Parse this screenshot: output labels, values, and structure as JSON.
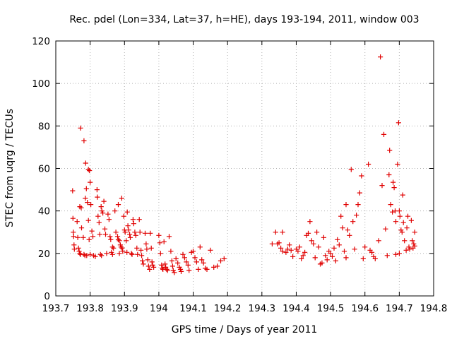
{
  "chart_data": {
    "type": "scatter",
    "title": "Rec. pdel (Lon=334, Lat=37, h=HE), days 193-194, 2011, window 003",
    "xlabel": "GPS time / Days of year 2011",
    "ylabel": "STEC from uqrg / TECUs",
    "xlim": [
      193.7,
      194.8
    ],
    "ylim": [
      0,
      120
    ],
    "x_ticks": [
      "193.7",
      "193.8",
      "193.9",
      "194",
      "194.1",
      "194.2",
      "194.3",
      "194.4",
      "194.5",
      "194.6",
      "194.7",
      "194.8"
    ],
    "y_ticks": [
      "0",
      "20",
      "40",
      "60",
      "80",
      "100",
      "120"
    ],
    "grid": true,
    "marker": "+",
    "color": "#e00000",
    "series": [
      {
        "points": [
          [
            193.749,
            49.5
          ],
          [
            193.75,
            36.5
          ],
          [
            193.751,
            30
          ],
          [
            193.752,
            28
          ],
          [
            193.753,
            24
          ],
          [
            193.754,
            22
          ],
          [
            193.762,
            35
          ],
          [
            193.764,
            27.5
          ],
          [
            193.766,
            22.5
          ],
          [
            193.768,
            21
          ],
          [
            193.77,
            20
          ],
          [
            193.772,
            19.5
          ],
          [
            193.77,
            42
          ],
          [
            193.774,
            41.5
          ],
          [
            193.775,
            32
          ],
          [
            193.78,
            27.5
          ],
          [
            193.782,
            19.5
          ],
          [
            193.785,
            19
          ],
          [
            193.79,
            19
          ],
          [
            193.786,
            46
          ],
          [
            193.789,
            50.5
          ],
          [
            193.792,
            44
          ],
          [
            193.795,
            35.5
          ],
          [
            193.797,
            26.5
          ],
          [
            193.8,
            19.5
          ],
          [
            193.772,
            79
          ],
          [
            193.782,
            73
          ],
          [
            193.787,
            62.5
          ],
          [
            193.795,
            59.5
          ],
          [
            193.798,
            59
          ],
          [
            193.8,
            53.5
          ],
          [
            193.802,
            43
          ],
          [
            193.805,
            30.5
          ],
          [
            193.808,
            28
          ],
          [
            193.81,
            19
          ],
          [
            193.815,
            18.5
          ],
          [
            193.82,
            50
          ],
          [
            193.821,
            46.5
          ],
          [
            193.823,
            37.5
          ],
          [
            193.826,
            34.5
          ],
          [
            193.828,
            29
          ],
          [
            193.83,
            19.5
          ],
          [
            193.833,
            19
          ],
          [
            193.832,
            42
          ],
          [
            193.834,
            40
          ],
          [
            193.837,
            39
          ],
          [
            193.84,
            44.5
          ],
          [
            193.843,
            31.5
          ],
          [
            193.845,
            29
          ],
          [
            193.848,
            20
          ],
          [
            193.852,
            38.5
          ],
          [
            193.855,
            36
          ],
          [
            193.858,
            28
          ],
          [
            193.86,
            26.5
          ],
          [
            193.862,
            20.5
          ],
          [
            193.865,
            19.5
          ],
          [
            193.865,
            23
          ],
          [
            193.868,
            22.5
          ],
          [
            193.872,
            40
          ],
          [
            193.875,
            30
          ],
          [
            193.88,
            28
          ],
          [
            193.882,
            26.5
          ],
          [
            193.885,
            20
          ],
          [
            193.882,
            43
          ],
          [
            193.885,
            26
          ],
          [
            193.888,
            24
          ],
          [
            193.89,
            23
          ],
          [
            193.893,
            22.5
          ],
          [
            193.895,
            21
          ],
          [
            193.892,
            46
          ],
          [
            193.898,
            37.5
          ],
          [
            193.9,
            31
          ],
          [
            193.902,
            30
          ],
          [
            193.905,
            26
          ],
          [
            193.907,
            20.5
          ],
          [
            193.908,
            39.5
          ],
          [
            193.91,
            33
          ],
          [
            193.912,
            31
          ],
          [
            193.915,
            29
          ],
          [
            193.917,
            27.5
          ],
          [
            193.92,
            20
          ],
          [
            193.922,
            19.5
          ],
          [
            193.925,
            36
          ],
          [
            193.927,
            34
          ],
          [
            193.93,
            30
          ],
          [
            193.933,
            28.5
          ],
          [
            193.936,
            22.5
          ],
          [
            193.938,
            19.5
          ],
          [
            193.943,
            36
          ],
          [
            193.945,
            30
          ],
          [
            193.948,
            21.5
          ],
          [
            193.95,
            19
          ],
          [
            193.952,
            16.5
          ],
          [
            193.955,
            15
          ],
          [
            193.96,
            29.5
          ],
          [
            193.963,
            24.5
          ],
          [
            193.965,
            22
          ],
          [
            193.968,
            17
          ],
          [
            193.97,
            14
          ],
          [
            193.973,
            12.5
          ],
          [
            193.975,
            29.5
          ],
          [
            193.978,
            22.5
          ],
          [
            193.98,
            16
          ],
          [
            193.982,
            14.5
          ],
          [
            193.985,
            13.5
          ],
          [
            194.0,
            28.5
          ],
          [
            194.003,
            25
          ],
          [
            194.005,
            20
          ],
          [
            194.008,
            14.5
          ],
          [
            194.01,
            13
          ],
          [
            194.012,
            12.5
          ],
          [
            194.015,
            25.5
          ],
          [
            194.018,
            15
          ],
          [
            194.02,
            13.5
          ],
          [
            194.023,
            12.5
          ],
          [
            194.025,
            12
          ],
          [
            194.03,
            28
          ],
          [
            194.035,
            21
          ],
          [
            194.038,
            16.5
          ],
          [
            194.04,
            14
          ],
          [
            194.042,
            12
          ],
          [
            194.045,
            11
          ],
          [
            194.05,
            17.5
          ],
          [
            194.055,
            15.5
          ],
          [
            194.06,
            13.5
          ],
          [
            194.063,
            12.5
          ],
          [
            194.065,
            11.5
          ],
          [
            194.07,
            19.5
          ],
          [
            194.075,
            18
          ],
          [
            194.08,
            16
          ],
          [
            194.085,
            14.5
          ],
          [
            194.088,
            12
          ],
          [
            194.095,
            20.5
          ],
          [
            194.1,
            21
          ],
          [
            194.105,
            18
          ],
          [
            194.11,
            16
          ],
          [
            194.115,
            12.5
          ],
          [
            194.12,
            23
          ],
          [
            194.125,
            17
          ],
          [
            194.13,
            15.5
          ],
          [
            194.135,
            13
          ],
          [
            194.14,
            12.5
          ],
          [
            194.15,
            21.5
          ],
          [
            194.16,
            13.5
          ],
          [
            194.17,
            14
          ],
          [
            194.18,
            16.5
          ],
          [
            194.19,
            17.5
          ],
          [
            194.33,
            24.5
          ],
          [
            194.34,
            30
          ],
          [
            194.345,
            24.5
          ],
          [
            194.35,
            25
          ],
          [
            194.355,
            22.5
          ],
          [
            194.36,
            21
          ],
          [
            194.36,
            30
          ],
          [
            194.37,
            20.5
          ],
          [
            194.375,
            22
          ],
          [
            194.38,
            24
          ],
          [
            194.385,
            21.5
          ],
          [
            194.39,
            18.5
          ],
          [
            194.4,
            22
          ],
          [
            194.405,
            21
          ],
          [
            194.41,
            23
          ],
          [
            194.415,
            17.5
          ],
          [
            194.42,
            19
          ],
          [
            194.425,
            20.5
          ],
          [
            194.43,
            28.5
          ],
          [
            194.435,
            29.5
          ],
          [
            194.44,
            35
          ],
          [
            194.445,
            26
          ],
          [
            194.45,
            24.5
          ],
          [
            194.455,
            18
          ],
          [
            194.46,
            30
          ],
          [
            194.465,
            23
          ],
          [
            194.47,
            15
          ],
          [
            194.475,
            15.5
          ],
          [
            194.48,
            27.5
          ],
          [
            194.485,
            19
          ],
          [
            194.49,
            17
          ],
          [
            194.495,
            21
          ],
          [
            194.5,
            20
          ],
          [
            194.505,
            18.5
          ],
          [
            194.51,
            22.5
          ],
          [
            194.515,
            16.5
          ],
          [
            194.52,
            26.5
          ],
          [
            194.525,
            24
          ],
          [
            194.53,
            37.5
          ],
          [
            194.535,
            32
          ],
          [
            194.54,
            21
          ],
          [
            194.545,
            18
          ],
          [
            194.545,
            43
          ],
          [
            194.55,
            31
          ],
          [
            194.555,
            28.5
          ],
          [
            194.56,
            59.5
          ],
          [
            194.565,
            35
          ],
          [
            194.57,
            22
          ],
          [
            194.575,
            38
          ],
          [
            194.58,
            43
          ],
          [
            194.585,
            48.5
          ],
          [
            194.59,
            56.5
          ],
          [
            194.595,
            17.5
          ],
          [
            194.6,
            23
          ],
          [
            194.61,
            62
          ],
          [
            194.615,
            21.5
          ],
          [
            194.62,
            20.5
          ],
          [
            194.625,
            18.5
          ],
          [
            194.63,
            17.5
          ],
          [
            194.64,
            26
          ],
          [
            194.645,
            112.5
          ],
          [
            194.65,
            52
          ],
          [
            194.655,
            76
          ],
          [
            194.66,
            31.5
          ],
          [
            194.665,
            19
          ],
          [
            194.67,
            57
          ],
          [
            194.672,
            68.5
          ],
          [
            194.675,
            43
          ],
          [
            194.68,
            39.5
          ],
          [
            194.682,
            53.5
          ],
          [
            194.685,
            51
          ],
          [
            194.688,
            40
          ],
          [
            194.69,
            35
          ],
          [
            194.695,
            62
          ],
          [
            194.698,
            81.5
          ],
          [
            194.7,
            40
          ],
          [
            194.702,
            37.5
          ],
          [
            194.705,
            31
          ],
          [
            194.708,
            30
          ],
          [
            194.71,
            47.5
          ],
          [
            194.712,
            34.5
          ],
          [
            194.715,
            26
          ],
          [
            194.72,
            21.5
          ],
          [
            194.722,
            32
          ],
          [
            194.725,
            37.5
          ],
          [
            194.728,
            23
          ],
          [
            194.73,
            22
          ],
          [
            194.735,
            35.5
          ],
          [
            194.738,
            26
          ],
          [
            194.74,
            22.5
          ],
          [
            194.742,
            24.5
          ],
          [
            194.745,
            23.5
          ],
          [
            194.745,
            30
          ],
          [
            194.69,
            19.5
          ],
          [
            194.7,
            20
          ]
        ]
      }
    ]
  }
}
